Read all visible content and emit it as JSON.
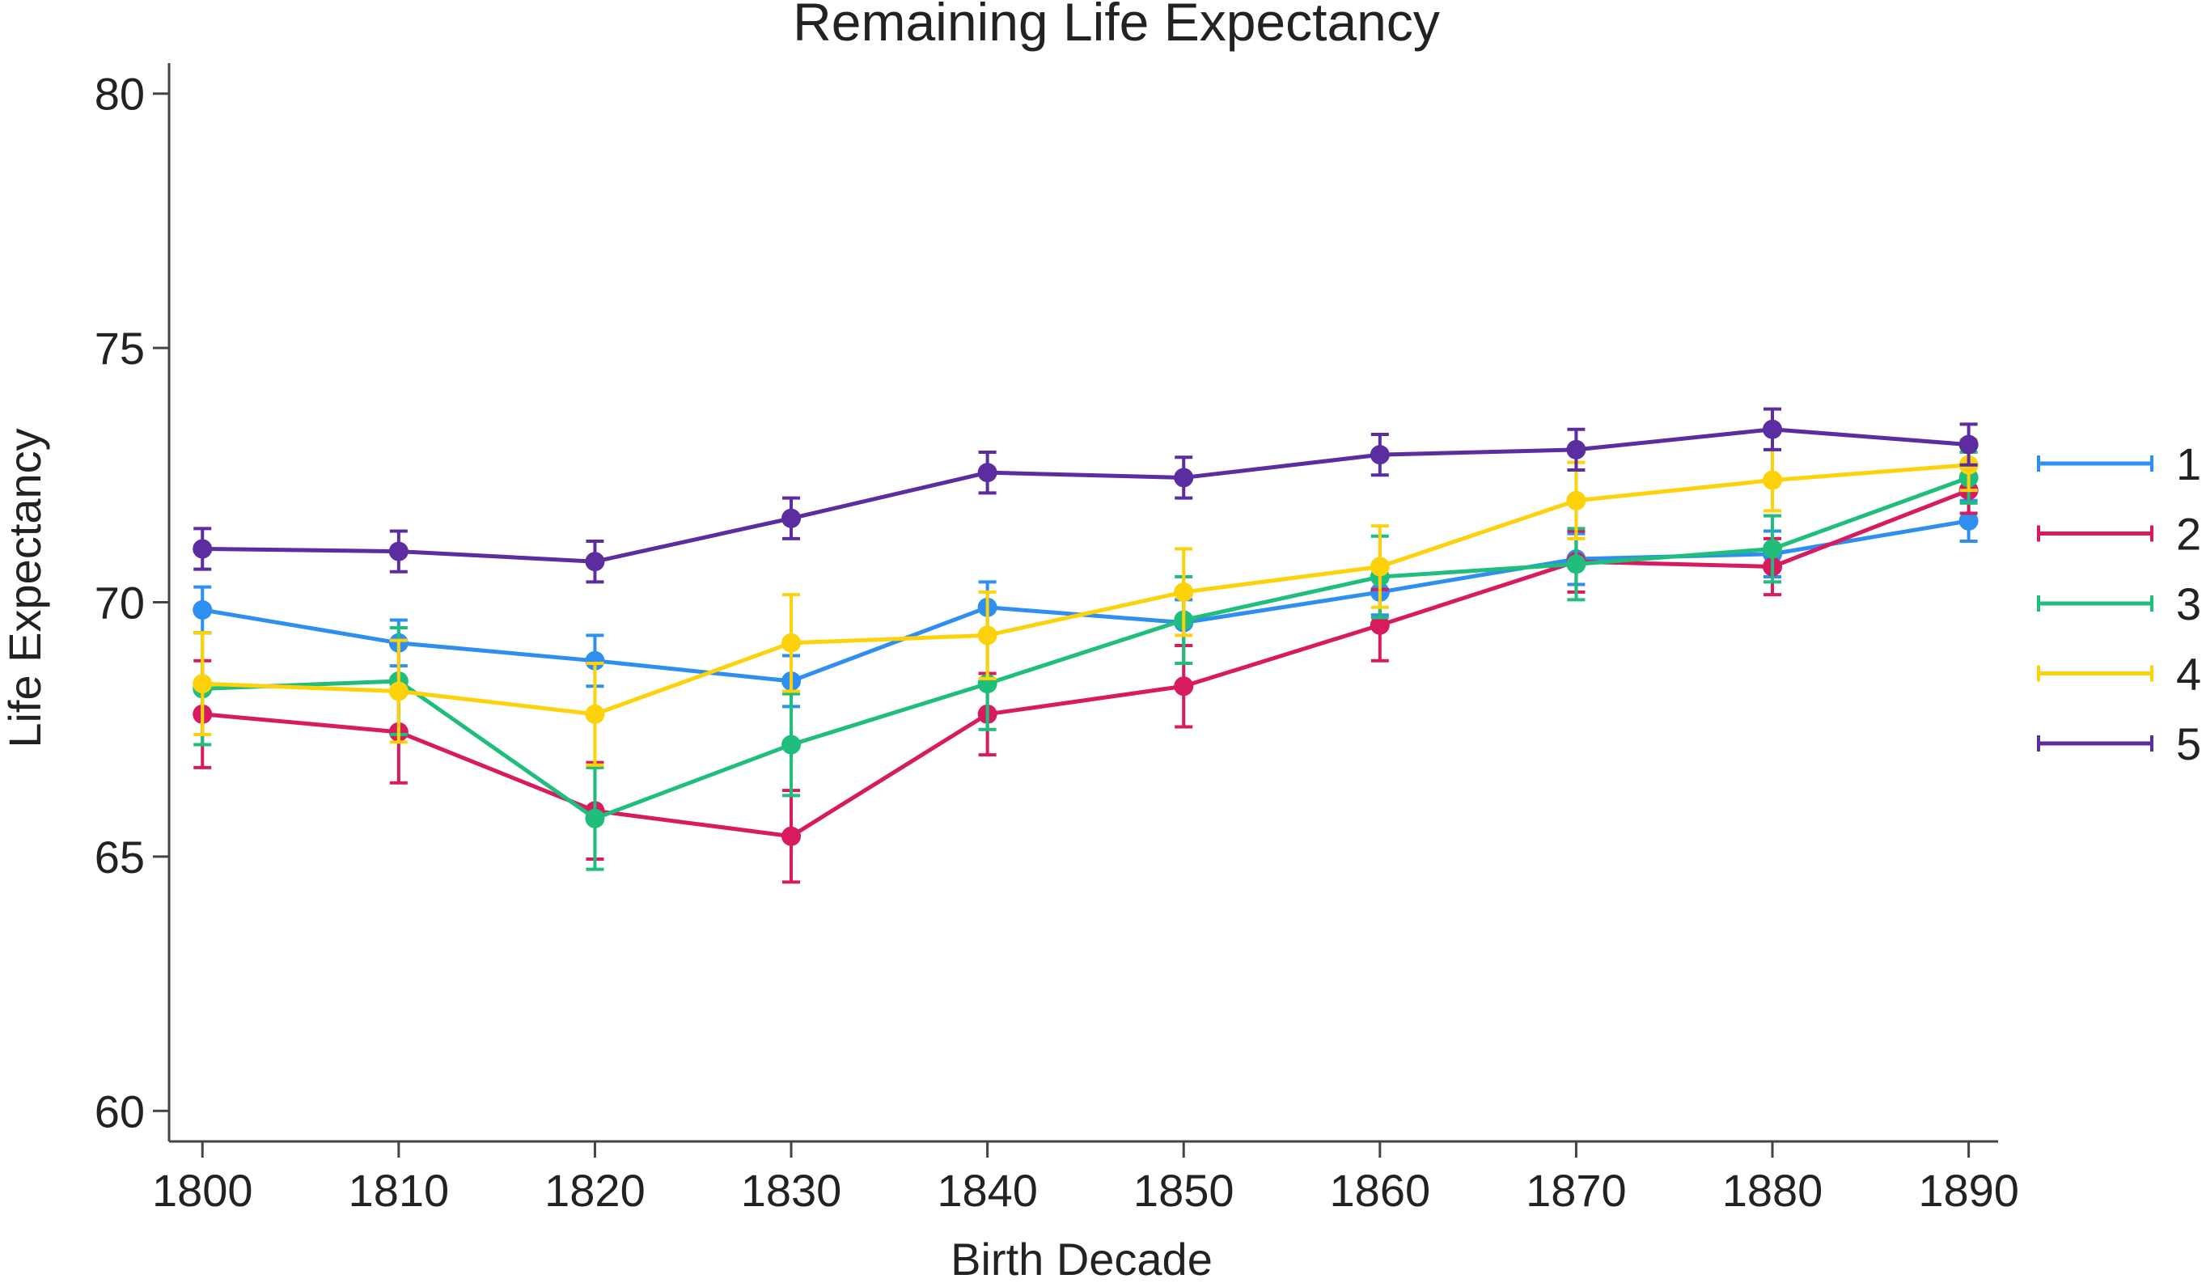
{
  "chart_data": {
    "type": "line",
    "title": "Remaining Life Expectancy",
    "xlabel": "Birth Decade",
    "ylabel": "Life Expectancy",
    "x": [
      1800,
      1810,
      1820,
      1830,
      1840,
      1850,
      1860,
      1870,
      1880,
      1890
    ],
    "x_ticks": [
      "1800",
      "1810",
      "1820",
      "1830",
      "1840",
      "1850",
      "1860",
      "1870",
      "1880",
      "1890"
    ],
    "y_ticks": [
      "60",
      "65",
      "70",
      "75",
      "80"
    ],
    "ylim": [
      59.4,
      80.6
    ],
    "xlim": [
      1798.3,
      1891.5
    ],
    "grid": false,
    "legend_position": "right",
    "series": [
      {
        "name": "1",
        "color": "#2e8ff0",
        "values": [
          69.85,
          69.2,
          68.85,
          68.45,
          69.9,
          69.6,
          70.2,
          70.85,
          70.95,
          71.6
        ],
        "error": [
          0.45,
          0.45,
          0.5,
          0.5,
          0.5,
          0.45,
          0.45,
          0.5,
          0.45,
          0.4
        ]
      },
      {
        "name": "2",
        "color": "#d81b60",
        "values": [
          67.8,
          67.45,
          65.9,
          65.4,
          67.8,
          68.35,
          69.55,
          70.8,
          70.7,
          72.2
        ],
        "error": [
          1.05,
          1.0,
          0.95,
          0.9,
          0.8,
          0.8,
          0.7,
          0.6,
          0.55,
          0.45
        ]
      },
      {
        "name": "3",
        "color": "#1fbe7c",
        "values": [
          68.3,
          68.45,
          65.75,
          67.2,
          68.4,
          69.65,
          70.5,
          70.75,
          71.05,
          72.45
        ],
        "error": [
          1.1,
          1.05,
          1.0,
          1.0,
          0.9,
          0.85,
          0.8,
          0.7,
          0.65,
          0.5
        ]
      },
      {
        "name": "4",
        "color": "#fdd20a",
        "values": [
          68.4,
          68.25,
          67.8,
          69.2,
          69.35,
          70.2,
          70.7,
          72.0,
          72.4,
          72.7
        ],
        "error": [
          1.0,
          1.0,
          1.0,
          0.95,
          0.85,
          0.85,
          0.8,
          0.75,
          0.6,
          0.5
        ]
      },
      {
        "name": "5",
        "color": "#5b2da0",
        "values": [
          71.05,
          71.0,
          70.8,
          71.65,
          72.55,
          72.45,
          72.9,
          73.0,
          73.4,
          73.1
        ],
        "error": [
          0.4,
          0.4,
          0.4,
          0.4,
          0.4,
          0.4,
          0.4,
          0.4,
          0.4,
          0.4
        ]
      }
    ]
  }
}
